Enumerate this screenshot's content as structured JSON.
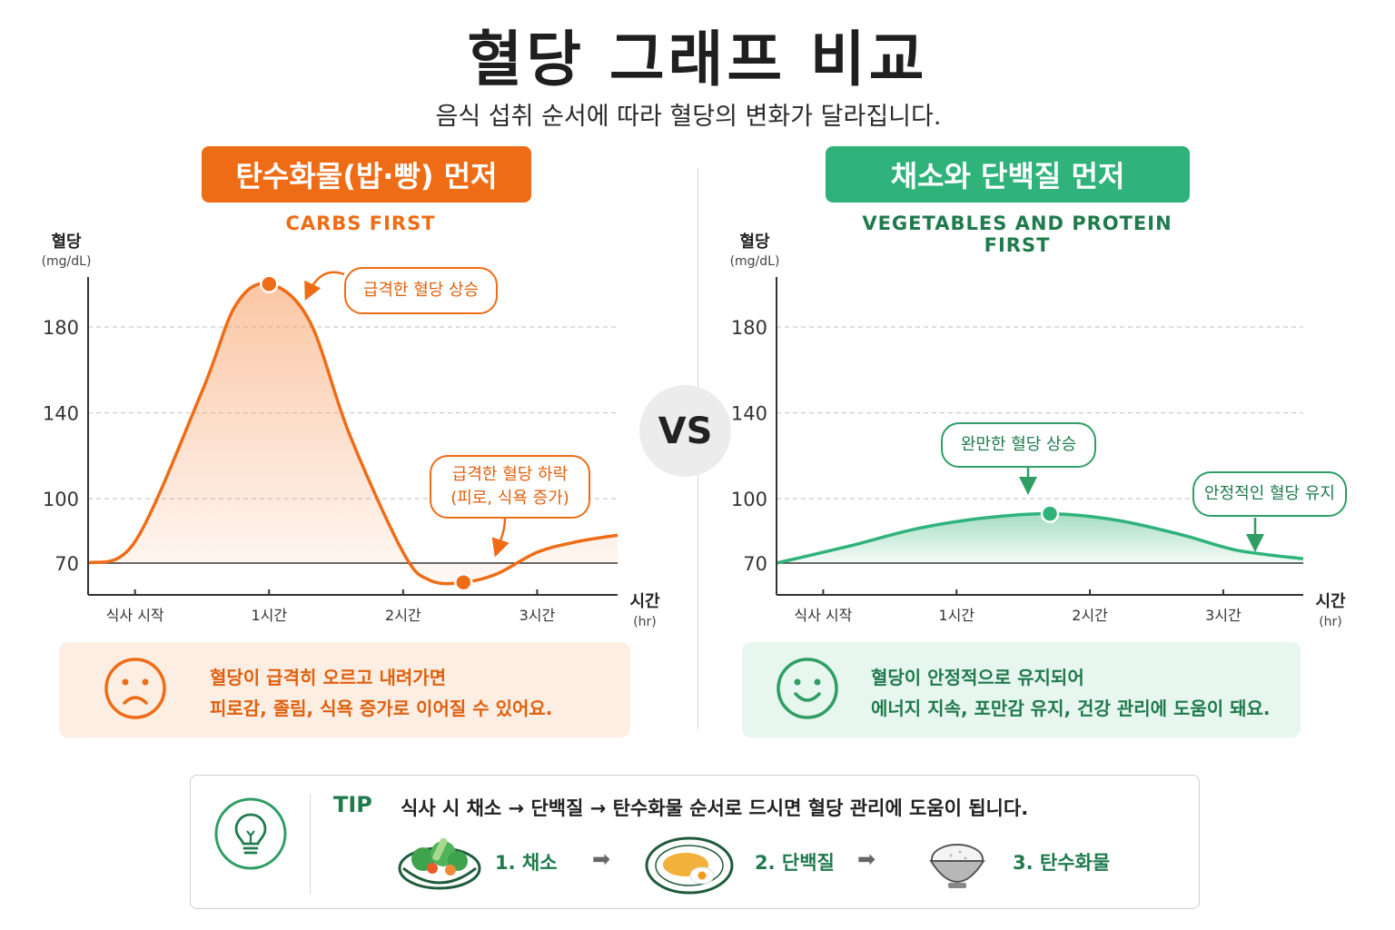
{
  "title": "혈당 그래프 비교",
  "subtitle": "음식 섭취 순서에 따라 혈당의 변화가 달라집니다.",
  "vs_label": "VS",
  "colors": {
    "orange": "#ef6c17",
    "green": "#2fb37b",
    "dark_green": "#1f7a4c"
  },
  "left_panel": {
    "heading": "탄수화물(밥·빵) 먼저",
    "heading_en": "CARBS FIRST",
    "callout_rise": "급격한 혈당 상승",
    "callout_fall_line1": "급격한 혈당 하락",
    "callout_fall_line2": "(피로, 식욕 증가)",
    "message_line1": "혈당이 급격히 오르고 내려가면",
    "message_line2": "피로감, 졸림, 식욕 증가로 이어질 수 있어요.",
    "face_icon": "sad-face-icon"
  },
  "right_panel": {
    "heading": "채소와 단백질 먼저",
    "heading_en": "VEGETABLES AND PROTEIN FIRST",
    "callout_rise": "완만한 혈당 상승",
    "callout_stable": "안정적인 혈당 유지",
    "message_line1": "혈당이 안정적으로 유지되어",
    "message_line2": "에너지 지속, 포만감 유지, 건강 관리에 도움이 돼요.",
    "face_icon": "smile-face-icon"
  },
  "tip": {
    "label": "TIP",
    "text": "식사 시  채소 → 단백질 → 탄수화물 순서로 드시면 혈당 관리에 도움이 됩니다.",
    "icon": "lightbulb-icon",
    "steps": [
      {
        "label": "1. 채소",
        "icon": "salad-bowl-icon"
      },
      {
        "label": "2. 단백질",
        "icon": "egg-plate-icon"
      },
      {
        "label": "3. 탄수화물",
        "icon": "rice-bowl-icon"
      }
    ],
    "arrow": "➡"
  },
  "chart_data": [
    {
      "type": "area",
      "title": "",
      "ylabel": "혈당",
      "ylabel_unit": "(mg/dL)",
      "xlabel": "시간",
      "xlabel_unit": "(hr)",
      "y_ticks": [
        70,
        100,
        140,
        180
      ],
      "x_ticks": [
        "식사 시작",
        "1시간",
        "2시간",
        "3시간"
      ],
      "x_tick_values": [
        0,
        1,
        2,
        3
      ],
      "xlim": [
        -0.35,
        3.6
      ],
      "ylim": [
        55,
        215
      ],
      "baseline": 70,
      "grid": "dashed at 100, 140, 180",
      "series": [
        {
          "x": [
            -0.35,
            0,
            0.5,
            0.75,
            1.0,
            1.3,
            1.6,
            2.0,
            2.2,
            2.45,
            2.7,
            3.0,
            3.3,
            3.6
          ],
          "values": [
            70,
            80,
            150,
            190,
            200,
            183,
            130,
            75,
            62,
            61,
            65,
            75,
            80,
            83
          ],
          "color": "#ef6c17"
        }
      ],
      "markers": [
        {
          "x": 1.0,
          "y": 200
        },
        {
          "x": 2.45,
          "y": 61
        }
      ]
    },
    {
      "type": "area",
      "title": "",
      "ylabel": "혈당",
      "ylabel_unit": "(mg/dL)",
      "xlabel": "시간",
      "xlabel_unit": "(hr)",
      "y_ticks": [
        70,
        100,
        140,
        180
      ],
      "x_ticks": [
        "식사 시작",
        "1시간",
        "2시간",
        "3시간"
      ],
      "x_tick_values": [
        0,
        1,
        2,
        3
      ],
      "xlim": [
        -0.35,
        3.6
      ],
      "ylim": [
        55,
        215
      ],
      "baseline": 70,
      "grid": "dashed at 100, 140, 180",
      "series": [
        {
          "x": [
            -0.35,
            0.2,
            0.7,
            1.2,
            1.7,
            2.2,
            2.7,
            3.1,
            3.6
          ],
          "values": [
            70,
            78,
            86,
            91,
            93,
            90,
            83,
            76,
            72
          ],
          "color": "#2fb37b"
        }
      ],
      "markers": [
        {
          "x": 1.7,
          "y": 93
        }
      ]
    }
  ]
}
